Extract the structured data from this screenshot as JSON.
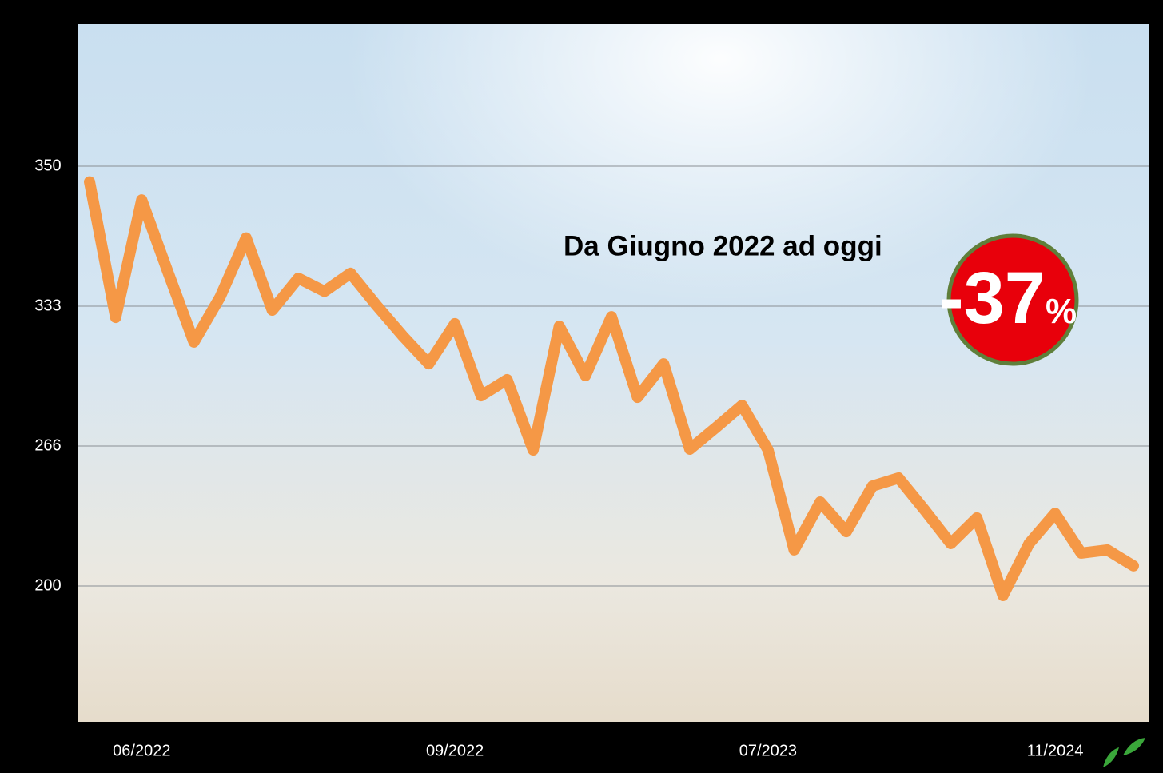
{
  "chart_data": {
    "type": "line",
    "annotation": "Da Giugno 2022 ad oggi",
    "badge_number": "-37",
    "badge_unit": "%",
    "categories": [
      null,
      null,
      "06/2022",
      null,
      null,
      null,
      null,
      null,
      null,
      null,
      null,
      null,
      null,
      null,
      "09/2022",
      null,
      null,
      null,
      null,
      null,
      null,
      null,
      null,
      null,
      null,
      null,
      "07/2023",
      null,
      null,
      null,
      null,
      null,
      null,
      null,
      null,
      null,
      null,
      "11/2024",
      null,
      null,
      null
    ],
    "series": [
      {
        "color": "#f59846",
        "values": [
          348.1,
          327.6,
          345.9,
          337.2,
          315.8,
          334.1,
          341.3,
          331.1,
          336.4,
          334.8,
          337.0,
          333.1,
          318.8,
          305.4,
          324.6,
          290.1,
          297.8,
          264.1,
          323.4,
          299.7,
          328.0,
          289.3,
          305.4,
          264.5,
          274.8,
          285.5,
          264.1,
          217.0,
          239.6,
          225.6,
          247.1,
          250.9,
          235.8,
          220.0,
          232.1,
          195.5,
          220.0,
          234.3,
          215.5,
          217.0,
          209.5
        ]
      }
    ],
    "ylim": [
      136,
      367
    ],
    "yticks": [
      200,
      266,
      333,
      350
    ],
    "grid": true
  }
}
